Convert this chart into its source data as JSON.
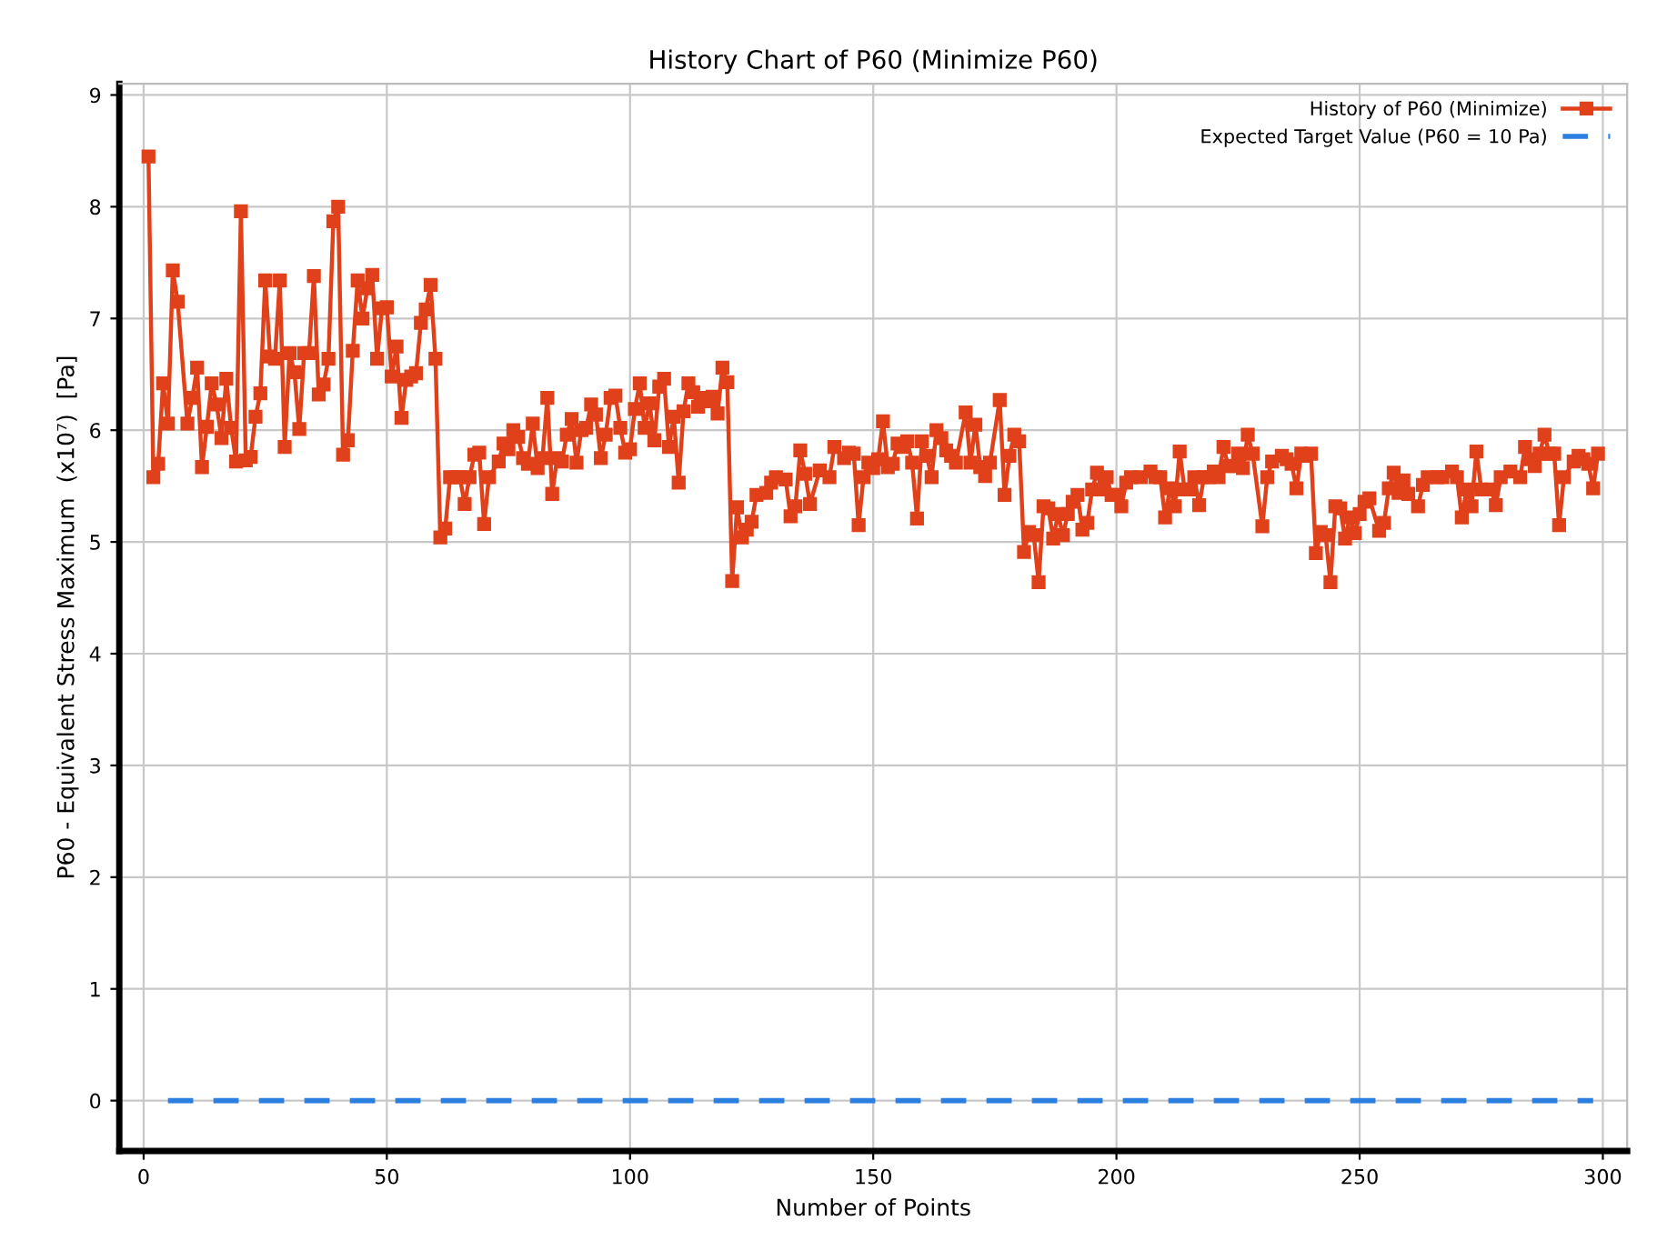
{
  "chart_data": {
    "type": "line",
    "title": "History Chart of P60 (Minimize P60)",
    "xlabel": "Number of Points",
    "ylabel": "P60 - Equivalent Stress Maximum  (x10⁷)  [Pa]",
    "xlim": [
      -5,
      305
    ],
    "ylim": [
      -0.45,
      9.1
    ],
    "xticks": [
      0,
      50,
      100,
      150,
      200,
      250,
      300
    ],
    "yticks": [
      0,
      1,
      2,
      3,
      4,
      5,
      6,
      7,
      8,
      9
    ],
    "grid": true,
    "legend": "top right",
    "series": [
      {
        "name": "History of P60 (Minimize)",
        "color": "#e0401a",
        "marker": "square",
        "line_style": "solid",
        "x": [
          1,
          2,
          3,
          4,
          5,
          6,
          7,
          9,
          10,
          11,
          12,
          13,
          14,
          15,
          16,
          17,
          18,
          19,
          20,
          21,
          22,
          23,
          24,
          25,
          26,
          27,
          28,
          29,
          30,
          31,
          32,
          33,
          34,
          35,
          36,
          37,
          38,
          39,
          40,
          41,
          42,
          43,
          44,
          45,
          46,
          47,
          48,
          49,
          50,
          51,
          52,
          53,
          54,
          55,
          56,
          57,
          58,
          59,
          60,
          61,
          62,
          63,
          64,
          65,
          66,
          67,
          68,
          69,
          70,
          71,
          73,
          74,
          75,
          76,
          77,
          78,
          79,
          80,
          81,
          82,
          83,
          84,
          85,
          86,
          87,
          88,
          89,
          90,
          91,
          92,
          93,
          94,
          95,
          96,
          97,
          98,
          99,
          100,
          101,
          102,
          103,
          104,
          105,
          106,
          107,
          108,
          109,
          110,
          111,
          112,
          113,
          114,
          115,
          116,
          117,
          118,
          119,
          120,
          121,
          122,
          123,
          124,
          125,
          126,
          128,
          129,
          130,
          132,
          133,
          134,
          135,
          136,
          137,
          139,
          141,
          142,
          144,
          145,
          146,
          147,
          148,
          149,
          150,
          151,
          152,
          153,
          154,
          155,
          156,
          157,
          158,
          159,
          160,
          161,
          162,
          163,
          164,
          165,
          166,
          167,
          169,
          170,
          171,
          172,
          173,
          174,
          176,
          177,
          178,
          179,
          180,
          181,
          182,
          183,
          184,
          185,
          186,
          187,
          188,
          189,
          190,
          191,
          192,
          193,
          194,
          195,
          196,
          197,
          198,
          199,
          200,
          201,
          202,
          203,
          205,
          207,
          208,
          209,
          210,
          211,
          212,
          213,
          214,
          215,
          216,
          217,
          218,
          219,
          220,
          221,
          222,
          223,
          224,
          225,
          226,
          227,
          228,
          230,
          231,
          232,
          234,
          235,
          236,
          237,
          238,
          239,
          240,
          241,
          242,
          243,
          244,
          245,
          246,
          247,
          248,
          249,
          250,
          251,
          252,
          254,
          255,
          256,
          257,
          258,
          259,
          260,
          262,
          263,
          264,
          266,
          267,
          269,
          270,
          271,
          272,
          273,
          274,
          275,
          277,
          278,
          279,
          281,
          283,
          284,
          285,
          286,
          287,
          288,
          289,
          290,
          291,
          292,
          294,
          295,
          296,
          297,
          298,
          299
        ],
        "values": [
          8.45,
          5.58,
          5.7,
          6.42,
          6.06,
          7.43,
          7.15,
          6.06,
          6.29,
          6.56,
          5.67,
          6.03,
          6.42,
          6.23,
          5.93,
          6.46,
          6.02,
          5.72,
          7.96,
          5.73,
          5.76,
          6.12,
          6.33,
          7.34,
          6.66,
          6.64,
          7.34,
          5.85,
          6.69,
          6.52,
          6.01,
          6.69,
          6.69,
          7.38,
          6.32,
          6.41,
          6.64,
          7.87,
          8.0,
          5.78,
          5.91,
          6.71,
          7.34,
          7.0,
          7.27,
          7.39,
          6.64,
          7.09,
          7.1,
          6.48,
          6.75,
          6.11,
          6.45,
          6.48,
          6.51,
          6.96,
          7.08,
          7.3,
          6.64,
          5.04,
          5.12,
          5.58,
          5.58,
          5.58,
          5.34,
          5.58,
          5.78,
          5.8,
          5.16,
          5.58,
          5.72,
          5.88,
          5.83,
          6.0,
          5.94,
          5.75,
          5.7,
          6.06,
          5.66,
          5.75,
          6.29,
          5.43,
          5.75,
          5.72,
          5.96,
          6.1,
          5.71,
          6.0,
          6.02,
          6.23,
          6.14,
          5.75,
          5.96,
          6.29,
          6.31,
          6.02,
          5.8,
          5.83,
          6.19,
          6.42,
          6.02,
          6.24,
          5.91,
          6.39,
          6.46,
          5.85,
          6.12,
          5.53,
          6.17,
          6.42,
          6.34,
          6.21,
          6.29,
          6.26,
          6.3,
          6.15,
          6.56,
          6.43,
          4.65,
          5.31,
          5.04,
          5.11,
          5.18,
          5.42,
          5.44,
          5.53,
          5.58,
          5.56,
          5.23,
          5.32,
          5.82,
          5.61,
          5.34,
          5.64,
          5.58,
          5.85,
          5.75,
          5.8,
          5.79,
          5.15,
          5.58,
          5.71,
          5.66,
          5.74,
          6.08,
          5.67,
          5.7,
          5.88,
          5.85,
          5.9,
          5.71,
          5.21,
          5.9,
          5.77,
          5.58,
          6.0,
          5.93,
          5.82,
          5.77,
          5.71,
          6.16,
          5.71,
          6.05,
          5.67,
          5.59,
          5.71,
          6.27,
          5.42,
          5.77,
          5.96,
          5.9,
          4.91,
          5.09,
          5.06,
          4.64,
          5.32,
          5.3,
          5.03,
          5.25,
          5.06,
          5.25,
          5.36,
          5.42,
          5.11,
          5.17,
          5.47,
          5.62,
          5.47,
          5.58,
          5.42,
          5.42,
          5.32,
          5.53,
          5.58,
          5.58,
          5.63,
          5.58,
          5.58,
          5.22,
          5.48,
          5.32,
          5.81,
          5.47,
          5.47,
          5.58,
          5.33,
          5.58,
          5.58,
          5.63,
          5.58,
          5.85,
          5.68,
          5.68,
          5.79,
          5.66,
          5.96,
          5.79,
          5.14,
          5.58,
          5.72,
          5.77,
          5.74,
          5.7,
          5.48,
          5.79,
          5.77,
          5.79,
          4.9,
          5.09,
          5.06,
          4.64,
          5.32,
          5.3,
          5.03,
          5.22,
          5.08,
          5.25,
          5.36,
          5.39,
          5.1,
          5.17,
          5.48,
          5.62,
          5.44,
          5.55,
          5.43,
          5.32,
          5.51,
          5.58,
          5.58,
          5.58,
          5.63,
          5.58,
          5.22,
          5.47,
          5.32,
          5.81,
          5.47,
          5.47,
          5.33,
          5.58,
          5.63,
          5.58,
          5.85,
          5.74,
          5.68,
          5.79,
          5.96,
          5.79,
          5.79,
          5.15,
          5.58,
          5.72,
          5.77,
          5.74,
          5.7,
          5.48,
          5.79
        ]
      },
      {
        "name": "Expected Target Value (P60 = 10 Pa)",
        "color": "#2a7fe0",
        "marker": "none",
        "line_style": "dashed",
        "x": [
          5,
          298
        ],
        "values": [
          0,
          0
        ]
      }
    ]
  }
}
